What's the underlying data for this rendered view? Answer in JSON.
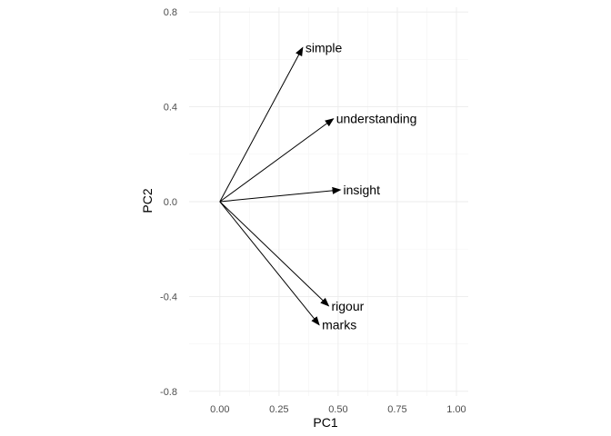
{
  "chart_data": {
    "type": "biplot",
    "title": "",
    "xlabel": "PC1",
    "ylabel": "PC2",
    "xlim": [
      -0.13,
      1.05
    ],
    "ylim": [
      -0.82,
      0.82
    ],
    "x_ticks": [
      0.0,
      0.25,
      0.5,
      0.75,
      1.0
    ],
    "x_tick_labels": [
      "0.00",
      "0.25",
      "0.50",
      "0.75",
      "1.00"
    ],
    "y_ticks": [
      -0.8,
      -0.4,
      0.0,
      0.4,
      0.8
    ],
    "y_tick_labels": [
      "-0.8",
      "-0.4",
      "0.0",
      "0.4",
      "0.8"
    ],
    "grid": true,
    "origin": [
      0,
      0
    ],
    "vectors": [
      {
        "name": "simple",
        "x": 0.35,
        "y": 0.65
      },
      {
        "name": "understanding",
        "x": 0.48,
        "y": 0.35
      },
      {
        "name": "insight",
        "x": 0.51,
        "y": 0.05
      },
      {
        "name": "rigour",
        "x": 0.46,
        "y": -0.44
      },
      {
        "name": "marks",
        "x": 0.42,
        "y": -0.52
      }
    ],
    "colors": {
      "background": "#ffffff",
      "grid": "#ebebeb",
      "vector": "#000000",
      "tick_text": "#4d4d4d"
    }
  }
}
